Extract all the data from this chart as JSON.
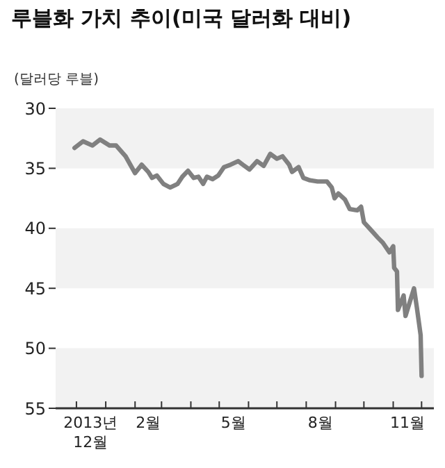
{
  "chart_data": {
    "type": "line",
    "title": "루블화 가치 추이(미국 달러화 대비)",
    "ylabel": "(달러당 루블)",
    "x": [
      "2013-11-29",
      "2013-12-08",
      "2013-12-18",
      "2013-12-26",
      "2014-01-05",
      "2014-01-12",
      "2014-01-22",
      "2014-02-01",
      "2014-02-08",
      "2014-02-15",
      "2014-02-19",
      "2014-02-24",
      "2014-03-03",
      "2014-03-10",
      "2014-03-18",
      "2014-03-23",
      "2014-03-29",
      "2014-04-04",
      "2014-04-09",
      "2014-04-14",
      "2014-04-18",
      "2014-04-24",
      "2014-04-30",
      "2014-05-06",
      "2014-05-13",
      "2014-05-21",
      "2014-05-26",
      "2014-06-02",
      "2014-06-10",
      "2014-06-17",
      "2014-06-24",
      "2014-07-01",
      "2014-07-07",
      "2014-07-14",
      "2014-07-17",
      "2014-07-24",
      "2014-07-29",
      "2014-08-05",
      "2014-08-13",
      "2014-08-23",
      "2014-08-28",
      "2014-08-31",
      "2014-09-04",
      "2014-09-11",
      "2014-09-16",
      "2014-09-24",
      "2014-09-28",
      "2014-10-01",
      "2014-10-08",
      "2014-10-16",
      "2014-10-21",
      "2014-10-28",
      "2014-11-01",
      "2014-11-02",
      "2014-11-05",
      "2014-11-06",
      "2014-11-12",
      "2014-11-14",
      "2014-11-23",
      "2014-11-26",
      "2014-11-30",
      "2014-12-01"
    ],
    "values": [
      33.3,
      32.75,
      33.1,
      32.6,
      33.1,
      33.1,
      34.0,
      35.4,
      34.7,
      35.3,
      35.8,
      35.6,
      36.3,
      36.6,
      36.3,
      35.7,
      35.2,
      35.8,
      35.7,
      36.3,
      35.7,
      35.9,
      35.6,
      34.9,
      34.7,
      34.4,
      34.7,
      35.1,
      34.4,
      34.8,
      33.8,
      34.2,
      34.0,
      34.7,
      35.3,
      34.9,
      35.8,
      36.0,
      36.1,
      36.1,
      36.6,
      37.5,
      37.1,
      37.6,
      38.4,
      38.5,
      38.2,
      39.5,
      40.1,
      40.8,
      41.2,
      42.0,
      41.5,
      43.3,
      43.6,
      46.8,
      45.6,
      47.3,
      45.0,
      46.6,
      48.9,
      52.3
    ],
    "color": "#808080",
    "marker": "none",
    "xlim": [
      "2013-11-09",
      "2014-12-14"
    ],
    "xticks": [
      {
        "value": "2013-12-01",
        "label": null
      },
      {
        "value": "2013-12-16",
        "label": "2013년 12월"
      },
      {
        "value": "2014-01-01",
        "label": null
      },
      {
        "value": "2014-02-01",
        "label": null
      },
      {
        "value": "2014-02-15",
        "label": "2월"
      },
      {
        "value": "2014-03-01",
        "label": null
      },
      {
        "value": "2014-04-01",
        "label": null
      },
      {
        "value": "2014-05-01",
        "label": null
      },
      {
        "value": "2014-05-16",
        "label": "5월"
      },
      {
        "value": "2014-06-01",
        "label": null
      },
      {
        "value": "2014-07-01",
        "label": null
      },
      {
        "value": "2014-08-01",
        "label": null
      },
      {
        "value": "2014-08-16",
        "label": "8월"
      },
      {
        "value": "2014-09-01",
        "label": null
      },
      {
        "value": "2014-10-01",
        "label": null
      },
      {
        "value": "2014-11-01",
        "label": null
      },
      {
        "value": "2014-11-16",
        "label": "11월"
      },
      {
        "value": "2014-12-01",
        "label": null
      }
    ],
    "ylim": [
      55,
      30
    ],
    "yticks": [
      30,
      35,
      40,
      45,
      50,
      55
    ],
    "bands": [
      {
        "axis": "y",
        "from": 30,
        "to": 35,
        "color": "#f2f2f2"
      },
      {
        "axis": "y",
        "from": 40,
        "to": 45,
        "color": "#f2f2f2"
      },
      {
        "axis": "y",
        "from": 50,
        "to": 55,
        "color": "#f2f2f2"
      }
    ]
  }
}
